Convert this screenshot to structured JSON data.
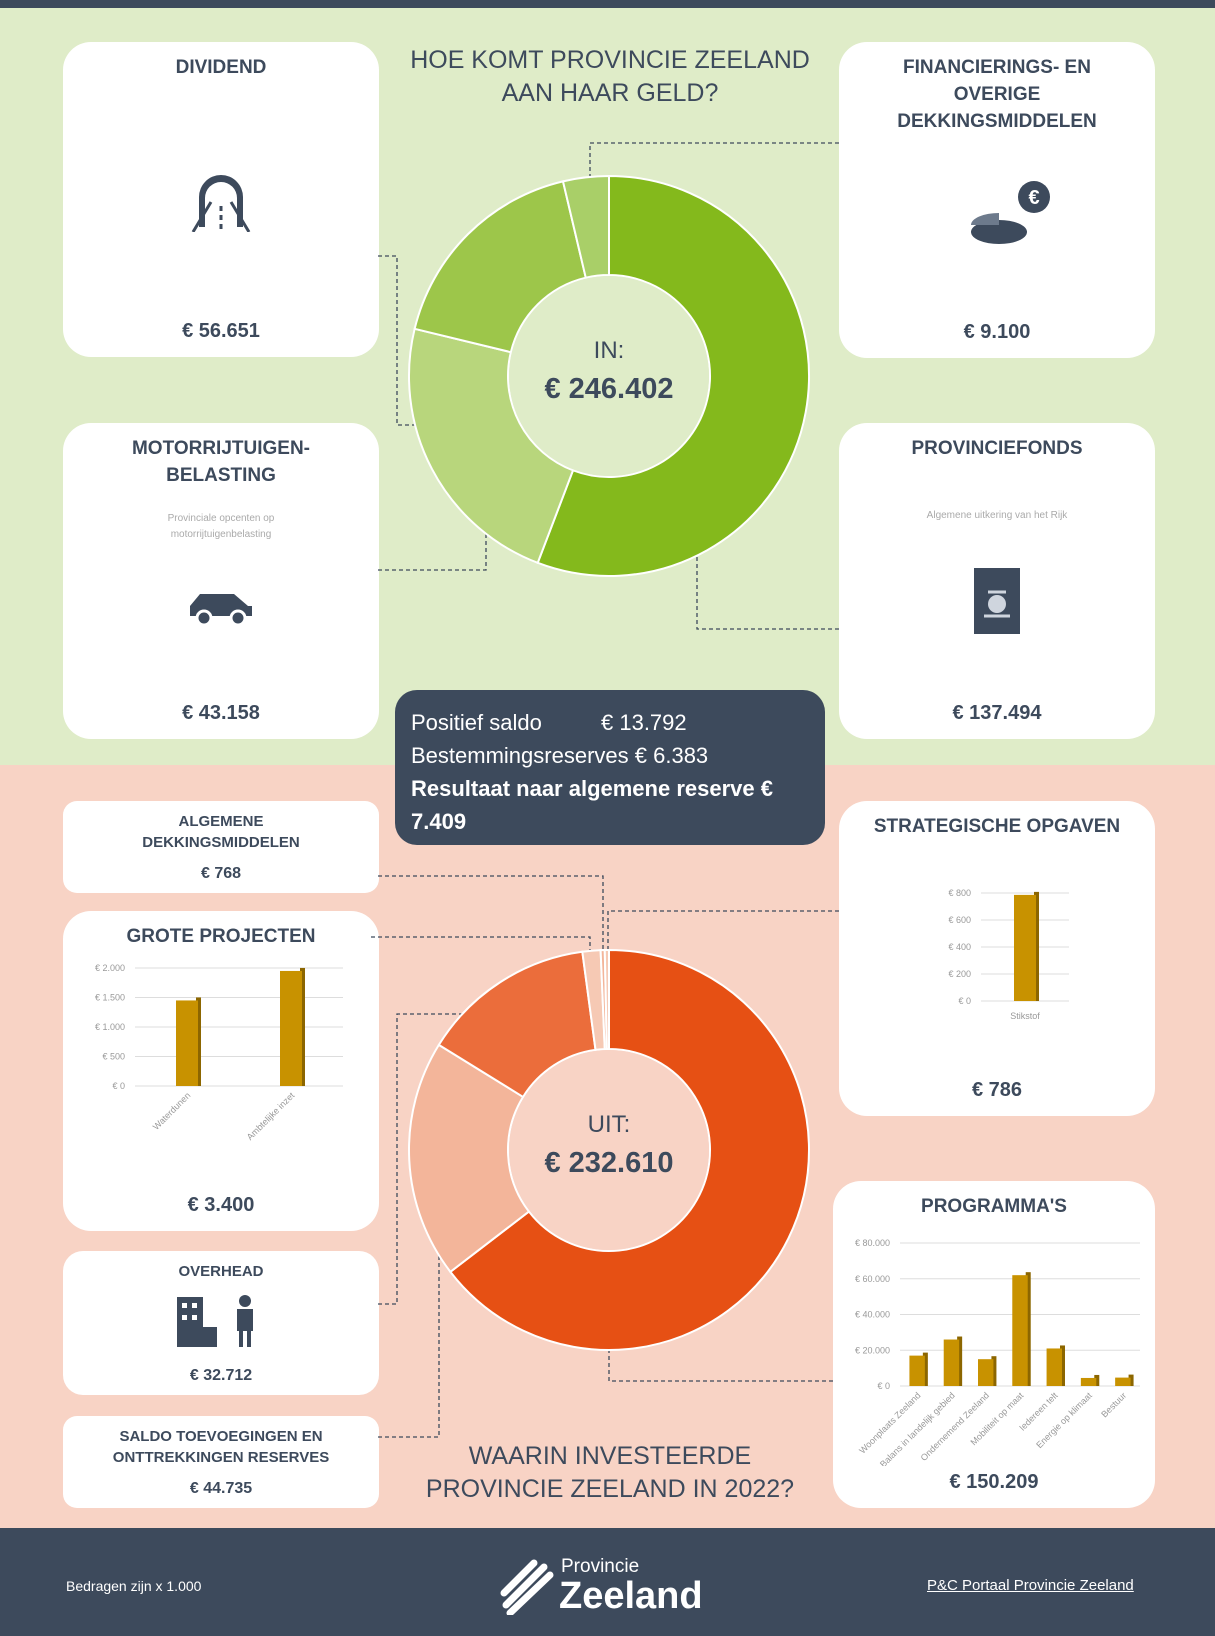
{
  "chart_data": [
    {
      "type": "donut",
      "title": "HOE KOMT PROVINCIE ZEELAND AAN HAAR GELD?",
      "center_label": "IN:",
      "total_label": "€ 246.402",
      "categories": [
        "PROVINCIEFONDS",
        "DIVIDEND",
        "MOTORRIJTUIGEN-BELASTING",
        "FINANCIERINGS- EN OVERIGE DEKKINGSMIDDELEN"
      ],
      "values": [
        137494,
        56651,
        43158,
        9100
      ],
      "value_labels": [
        "€ 137.494",
        "€ 56.651",
        "€ 43.158",
        "€ 9.100"
      ],
      "colors": [
        "#84b91c",
        "#b8d67c",
        "#9dc64a",
        "#a9cf68"
      ]
    },
    {
      "type": "donut",
      "title": "WAARIN INVESTEERDE PROVINCIE ZEELAND IN 2022?",
      "center_label": "UIT:",
      "total_label": "€ 232.610",
      "categories": [
        "PROGRAMMA'S",
        "SALDO TOEVOEGINGEN EN ONTTREKKINGEN RESERVES",
        "OVERHEAD",
        "GROTE PROJECTEN",
        "ALGEMENE DEKKINGSMIDDELEN",
        "STRATEGISCHE OPGAVEN"
      ],
      "values": [
        150209,
        44735,
        32712,
        3400,
        768,
        786
      ],
      "value_labels": [
        "€ 150.209",
        "€ 44.735",
        "€ 32.712",
        "€ 3.400",
        "€ 768",
        "€ 786"
      ],
      "colors": [
        "#e65014",
        "#f3b59a",
        "#eb6d3b",
        "#f6c9b4",
        "#f3b59a",
        "#f6c9b4"
      ]
    },
    {
      "type": "bar",
      "categories": [
        "Waterdunen",
        "Ambtelijke inzet"
      ],
      "values": [
        1450,
        1950
      ],
      "color": "#c89200",
      "ylim": [
        0,
        2000
      ],
      "yticks": [
        {
          "value": 0,
          "label": "€ 0"
        },
        {
          "value": 500,
          "label": "€ 500"
        },
        {
          "value": 1000,
          "label": "€ 1.000"
        },
        {
          "value": 1500,
          "label": "€ 1.500"
        },
        {
          "value": 2000,
          "label": "€ 2.000"
        }
      ],
      "grid": true
    },
    {
      "type": "bar",
      "categories": [
        "Stikstof"
      ],
      "values": [
        786
      ],
      "color": "#c89200",
      "ylim": [
        0,
        800
      ],
      "yticks": [
        {
          "value": 0,
          "label": "€ 0"
        },
        {
          "value": 200,
          "label": "€ 200"
        },
        {
          "value": 400,
          "label": "€ 400"
        },
        {
          "value": 600,
          "label": "€ 600"
        },
        {
          "value": 800,
          "label": "€ 800"
        }
      ],
      "grid": true
    },
    {
      "type": "bar",
      "categories": [
        "Woonplaats Zeeland",
        "Balans in landelijk gebied",
        "Ondernemend Zeeland",
        "Mobiliteit op maat",
        "Iedereen telt",
        "Energie op klimaat",
        "Bestuur"
      ],
      "values": [
        17000,
        26000,
        15000,
        62000,
        21000,
        4500,
        4700
      ],
      "color": "#c89200",
      "ylim": [
        0,
        80000
      ],
      "yticks": [
        {
          "value": 0,
          "label": "€ 0"
        },
        {
          "value": 20000,
          "label": "€ 20.000"
        },
        {
          "value": 40000,
          "label": "€ 40.000"
        },
        {
          "value": 60000,
          "label": "€ 60.000"
        },
        {
          "value": 80000,
          "label": "€ 80.000"
        }
      ],
      "grid": true
    }
  ],
  "in_notes": {
    "motorrijtuigenbelasting": "Provinciale opcenten op motorrijtuigenbelasting",
    "provinciefonds": "Algemene uitkering van het Rijk"
  },
  "saldo": {
    "rows": [
      {
        "label": "Positief saldo",
        "amount": "€ 13.792"
      },
      {
        "label": "Bestemmingsreserves",
        "amount": "€ 6.383"
      },
      {
        "label": "Resultaat naar algemene reserve",
        "amount": "€ 7.409"
      }
    ]
  },
  "footer": {
    "note": "Bedragen zijn x 1.000",
    "logo_top": "Provincie",
    "logo_bottom": "Zeeland",
    "link": "P&C Portaal Provincie Zeeland"
  }
}
